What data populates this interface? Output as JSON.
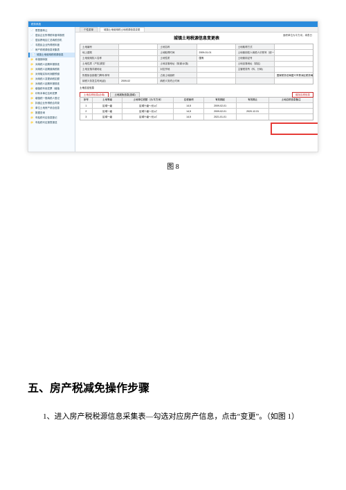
{
  "app": {
    "window_title": "税务系统",
    "tabs": [
      {
        "label": "个性菜单",
        "active": false
      },
      {
        "label": "城镇土地使用税土地税源信息变更",
        "active": true
      }
    ],
    "sidebar": [
      {
        "label": "限售股转让",
        "icon": "📄"
      },
      {
        "label": "居民企业所得税年度申报税",
        "icon": "📄"
      },
      {
        "label": "居民跨地区汇总纳税总机",
        "icon": "📄"
      },
      {
        "label": "非居民企业所得税年度",
        "icon": "📄"
      },
      {
        "label": "房产税税源信息采集表",
        "icon": "📄"
      },
      {
        "label": "城镇土地使用税税源信息",
        "icon": "📄",
        "selected": true
      },
      {
        "label": "申报期申报",
        "icon": "📁"
      },
      {
        "label": "对纳税人延期申报核准",
        "icon": "📁"
      },
      {
        "label": "对纳税人延期缴纳税款",
        "icon": "📁"
      },
      {
        "label": "对采取实际利润额预缴",
        "icon": "📁"
      },
      {
        "label": "对纳税人变更纳税定额",
        "icon": "📁"
      },
      {
        "label": "对纳税人延期申报核准",
        "icon": "📁"
      },
      {
        "label": "增值税专用发票（增值",
        "icon": "📁"
      },
      {
        "label": "印有本单位名称发票",
        "icon": "📁"
      },
      {
        "label": "增值税一般纳税人登记",
        "icon": "📁"
      },
      {
        "label": "扣缴企业所得税合同录",
        "icon": "📁"
      },
      {
        "label": "单位土地房产综合信息",
        "icon": "📁"
      },
      {
        "label": "数据查询",
        "icon": "📁"
      },
      {
        "label": "车船税代征信息登记",
        "icon": "📁"
      },
      {
        "label": "车船税代征报表报送",
        "icon": "📁"
      }
    ],
    "doc_title": "城镇土地税源信息变更表",
    "top_right_note": "面积单位为平方米；填表日",
    "fields_rows": [
      [
        {
          "lab": "土地编号"
        },
        {
          "val": ""
        },
        {
          "lab": "土地名称"
        },
        {
          "val": ""
        },
        {
          "lab": "土地取得方式"
        },
        {
          "val": ""
        }
      ],
      [
        {
          "lab": "地上建筑"
        },
        {
          "val": ""
        },
        {
          "lab": "土地取得时间"
        },
        {
          "val": "2009-01-01"
        },
        {
          "lab": "土地使用权人纳税人识别号（统一社会信用代码)"
        },
        {
          "val": ""
        }
      ],
      [
        {
          "lab": "土地使用权人名称"
        },
        {
          "val": ""
        },
        {
          "lab": "土地性质"
        },
        {
          "val": "国有"
        },
        {
          "lab": "土地使用证号"
        },
        {
          "val": ""
        }
      ],
      [
        {
          "lab": "土地性质（产权)类型"
        },
        {
          "val": ""
        },
        {
          "lab": "土地坐落地址（街道/乡镇)"
        },
        {
          "val": ""
        },
        {
          "lab": "土地坐落地址（镇区)"
        },
        {
          "val": ""
        }
      ],
      [
        {
          "lab": "土地坐落详细地址"
        },
        {
          "val": ""
        },
        {
          "lab": "对应宗地",
          "span": 1
        },
        {
          "val": ""
        },
        {
          "lab": "主管税务所（科、分局)"
        },
        {
          "val": ""
        }
      ],
      [
        {
          "lab": "所属街含镇楼门牌号/房号"
        },
        {
          "val": ""
        },
        {
          "lab": "占用土地面积"
        },
        {
          "val": ""
        },
        {
          "lab": ""
        },
        {
          "val": "国家税务总局嘉兴市秀洲区税务局"
        }
      ],
      [
        {
          "lab": "纳税义务发生时间(起)"
        },
        {
          "val": "2009-02"
        },
        {
          "lab": "纳税义务终止时间"
        },
        {
          "val": ""
        },
        {
          "lab": ""
        },
        {
          "val": ""
        }
      ]
    ],
    "subtabs_label": "土地应征信息",
    "subtab_a": "土地应税信息(必填)",
    "subtab_b": "土地减免信息(选填)",
    "button_label": "增加应税信息",
    "grid": {
      "columns": [
        "序号",
        "土地等级",
        "土地单位税额（元/平方米）",
        "应税面积",
        "有效期起",
        "有效期止",
        "土地应税信息备注"
      ],
      "rows": [
        [
          "1",
          "区域一级",
          "区域十级～元/㎡",
          "14,5",
          "2009-02-01",
          "",
          ""
        ],
        [
          "2",
          "区域一级",
          "区域十级～元/㎡",
          "14,5",
          "2009-02-01",
          "2020-12-31",
          ""
        ],
        [
          "3",
          "区域一级",
          "区域十级～元/㎡",
          "14,5",
          "2021-01-01",
          "",
          ""
        ]
      ]
    }
  },
  "caption": "图 8",
  "section_title": "五、房产税减免操作步骤",
  "paragraph": "1、进入房产税税源信息采集表—勾选对应房产信息，点击“变更”。（如图 1）",
  "colors": {
    "accent": "#2a8bdc",
    "red": "#e53935",
    "border": "#c9c9c9"
  }
}
